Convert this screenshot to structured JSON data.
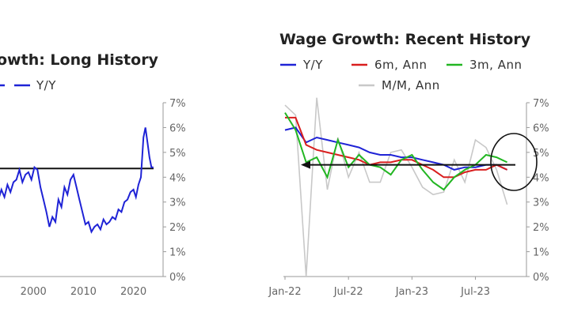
{
  "chart_data": [
    {
      "type": "line",
      "title": "Wage Growth: Long History",
      "title_visible_text": "owth: Long History",
      "legend": [
        "Y/Y"
      ],
      "xlabel": "",
      "ylabel": "",
      "x_ticks": [
        "2000",
        "2010",
        "2020"
      ],
      "y_ticks": [
        "0%",
        "1%",
        "2%",
        "3%",
        "4%",
        "5%",
        "6%",
        "7%"
      ],
      "ylim": [
        0,
        7
      ],
      "xlim": [
        1993,
        2024.5
      ],
      "reference_line": 4.35,
      "series": [
        {
          "name": "Y/Y",
          "color": "#1f23d6",
          "x": [
            1993,
            1993.6,
            1994.2,
            1994.8,
            1995.4,
            1996,
            1996.6,
            1997.2,
            1997.8,
            1998.4,
            1999,
            1999.6,
            2000.2,
            2000.8,
            2001.4,
            2002,
            2002.6,
            2003.2,
            2003.8,
            2004.4,
            2005,
            2005.6,
            2006.2,
            2006.8,
            2007.4,
            2008,
            2008.6,
            2009.2,
            2009.8,
            2010.4,
            2011,
            2011.6,
            2012.2,
            2012.8,
            2013.4,
            2014,
            2014.6,
            2015.2,
            2015.8,
            2016.4,
            2017,
            2017.6,
            2018.2,
            2018.8,
            2019.4,
            2020,
            2020.5,
            2021,
            2021.5,
            2022,
            2022.4,
            2022.8,
            2023.2,
            2023.6,
            2024
          ],
          "values": [
            3.1,
            3.5,
            3.2,
            3.7,
            3.4,
            3.8,
            3.9,
            4.3,
            3.8,
            4.1,
            4.2,
            3.9,
            4.4,
            4.3,
            3.6,
            3.1,
            2.6,
            2.0,
            2.4,
            2.2,
            3.1,
            2.8,
            3.6,
            3.3,
            3.9,
            4.1,
            3.6,
            3.1,
            2.6,
            2.1,
            2.2,
            1.8,
            2.0,
            2.1,
            1.9,
            2.3,
            2.1,
            2.2,
            2.4,
            2.3,
            2.7,
            2.6,
            3.0,
            3.1,
            3.4,
            3.5,
            3.2,
            3.7,
            4.0,
            5.6,
            6.0,
            5.4,
            4.8,
            4.4,
            4.4
          ]
        }
      ]
    },
    {
      "type": "line",
      "title": "Wage Growth: Recent History",
      "legend": [
        "Y/Y",
        "6m, Ann",
        "3m, Ann",
        "M/M, Ann"
      ],
      "xlabel": "",
      "ylabel": "",
      "x_ticks": [
        "Jan-22",
        "Jul-22",
        "Jan-23",
        "Jul-23"
      ],
      "y_ticks": [
        "0%",
        "1%",
        "2%",
        "3%",
        "4%",
        "5%",
        "6%",
        "7%"
      ],
      "ylim": [
        0,
        7
      ],
      "xlim": [
        0,
        22
      ],
      "reference_line": 4.5,
      "series": [
        {
          "name": "Y/Y",
          "color": "#1f23d6",
          "x": [
            0,
            1,
            2,
            3,
            4,
            5,
            6,
            7,
            8,
            9,
            10,
            11,
            12,
            13,
            14,
            15,
            16,
            17,
            18,
            19,
            20,
            21
          ],
          "values": [
            5.9,
            6.0,
            5.4,
            5.6,
            5.5,
            5.4,
            5.3,
            5.2,
            5.0,
            4.9,
            4.9,
            4.8,
            4.8,
            4.7,
            4.6,
            4.5,
            4.3,
            4.4,
            4.4,
            4.5,
            4.5,
            4.3
          ]
        },
        {
          "name": "6m, Ann",
          "color": "#d91e1e",
          "x": [
            0,
            1,
            2,
            3,
            4,
            5,
            6,
            7,
            8,
            9,
            10,
            11,
            12,
            13,
            14,
            15,
            16,
            17,
            18,
            19,
            20,
            21
          ],
          "values": [
            6.4,
            6.4,
            5.3,
            5.1,
            5.0,
            4.9,
            4.8,
            4.7,
            4.5,
            4.6,
            4.6,
            4.7,
            4.7,
            4.5,
            4.3,
            4.0,
            4.0,
            4.2,
            4.3,
            4.3,
            4.5,
            4.3
          ]
        },
        {
          "name": "3m, Ann",
          "color": "#22b622",
          "x": [
            0,
            1,
            2,
            3,
            4,
            5,
            6,
            7,
            8,
            9,
            10,
            11,
            12,
            13,
            14,
            15,
            16,
            17,
            18,
            19,
            20,
            21
          ],
          "values": [
            6.6,
            5.9,
            4.6,
            4.8,
            4.0,
            5.5,
            4.4,
            4.9,
            4.5,
            4.4,
            4.1,
            4.7,
            4.9,
            4.3,
            3.8,
            3.5,
            4.0,
            4.3,
            4.5,
            4.9,
            4.8,
            4.6
          ]
        },
        {
          "name": "M/M, Ann",
          "color": "#c8c8c8",
          "x": [
            0,
            1,
            2,
            3,
            4,
            5,
            6,
            7,
            8,
            9,
            10,
            11,
            12,
            13,
            14,
            15,
            16,
            17,
            18,
            19,
            20,
            21
          ],
          "values": [
            6.9,
            6.5,
            0.0,
            7.2,
            3.5,
            5.6,
            4.0,
            5.0,
            3.8,
            3.8,
            5.0,
            5.1,
            4.4,
            3.6,
            3.3,
            3.4,
            4.7,
            3.8,
            5.5,
            5.2,
            4.3,
            2.9
          ]
        }
      ],
      "annotations": [
        "circle around the last four months",
        "arrow pointing left along the 4.5% line"
      ]
    }
  ],
  "colors": {
    "yy": "#1f23d6",
    "six_month": "#d91e1e",
    "three_month": "#22b622",
    "month": "#c8c8c8",
    "axis": "#9a9a9a",
    "reference": "#111111"
  }
}
